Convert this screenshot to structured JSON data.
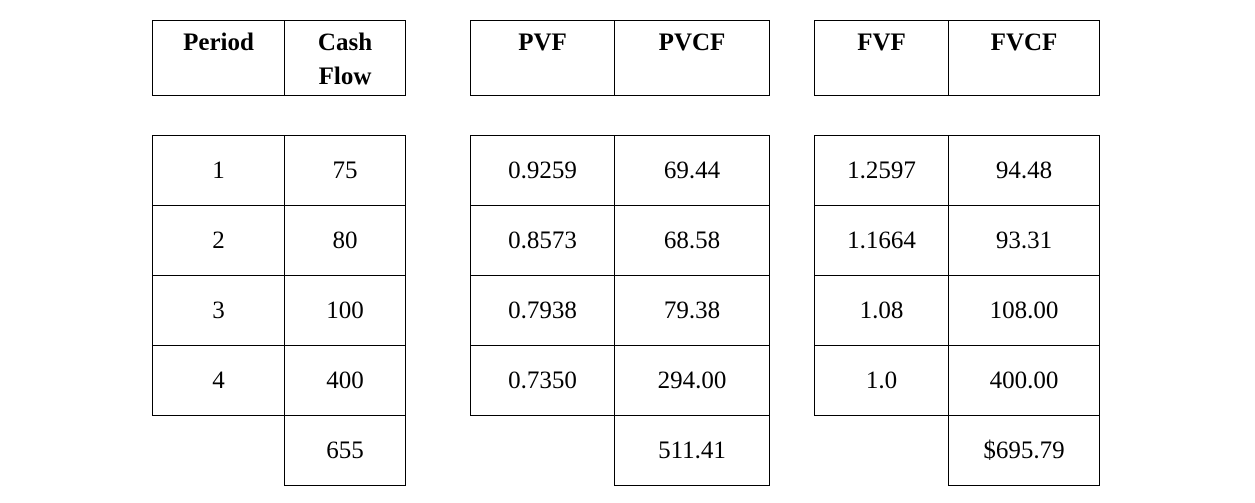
{
  "tables": [
    {
      "headers": [
        "Period",
        "Cash Flow"
      ],
      "rows": [
        [
          "1",
          "75"
        ],
        [
          "2",
          "80"
        ],
        [
          "3",
          "100"
        ],
        [
          "4",
          "400"
        ]
      ],
      "total": "655"
    },
    {
      "headers": [
        "PVF",
        "PVCF"
      ],
      "rows": [
        [
          "0.9259",
          "69.44"
        ],
        [
          "0.8573",
          "68.58"
        ],
        [
          "0.7938",
          "79.38"
        ],
        [
          "0.7350",
          "294.00"
        ]
      ],
      "total": "511.41"
    },
    {
      "headers": [
        "FVF",
        "FVCF"
      ],
      "rows": [
        [
          "1.2597",
          "94.48"
        ],
        [
          "1.1664",
          "93.31"
        ],
        [
          "1.08",
          "108.00"
        ],
        [
          "1.0",
          "400.00"
        ]
      ],
      "total": "$695.79"
    }
  ]
}
